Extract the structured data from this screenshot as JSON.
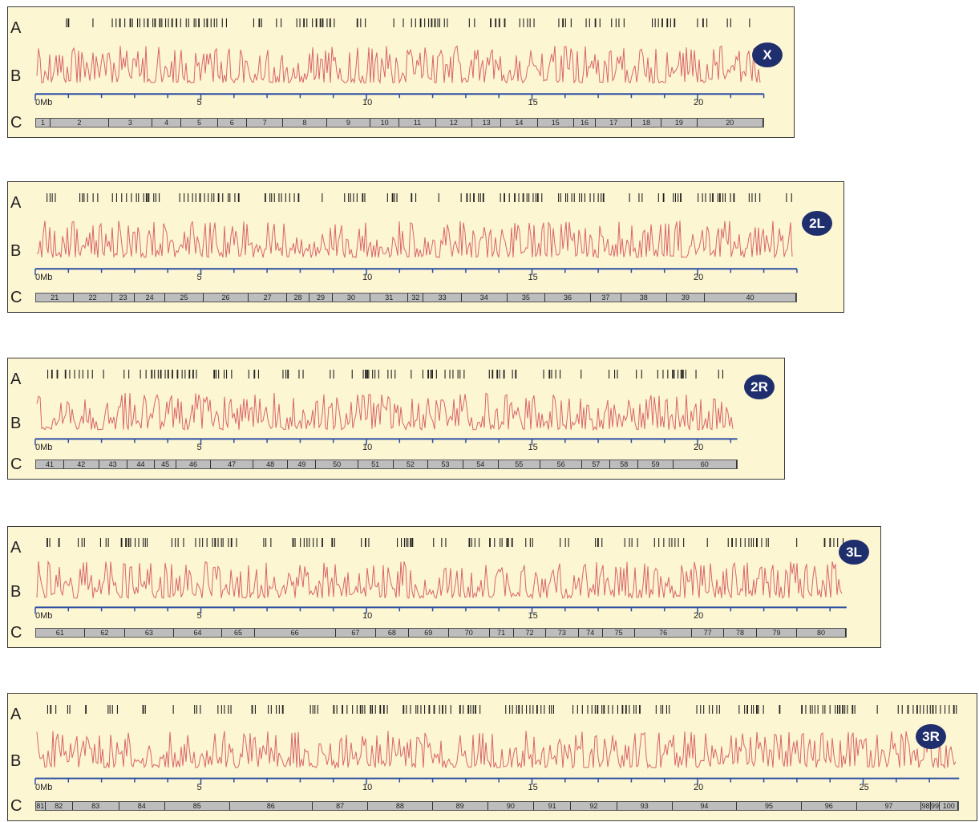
{
  "row_labels": {
    "a": "A",
    "b": "B",
    "c": "C"
  },
  "colors": {
    "panel_bg": "#fdf6d2",
    "trace": "#d9646a",
    "axis": "#2c4fa3",
    "badge_bg": "#1f2f6e",
    "segment_fill": "#bdbdbd"
  },
  "chromosomes": [
    {
      "id": "X",
      "badge": "X",
      "length_mb": 22,
      "tick_labels": [
        "0Mb",
        "5",
        "10",
        "15",
        "20"
      ],
      "segments": [
        "1",
        "2",
        "3",
        "4",
        "5",
        "6",
        "7",
        "8",
        "9",
        "10",
        "11",
        "12",
        "13",
        "14",
        "15",
        "16",
        "17",
        "18",
        "19",
        "20"
      ]
    },
    {
      "id": "2L",
      "badge": "2L",
      "length_mb": 23,
      "tick_labels": [
        "0Mb",
        "5",
        "10",
        "15",
        "20"
      ],
      "segments": [
        "21",
        "22",
        "23",
        "24",
        "25",
        "26",
        "27",
        "28",
        "29",
        "30",
        "31",
        "32",
        "33",
        "34",
        "35",
        "36",
        "37",
        "38",
        "39",
        "40"
      ]
    },
    {
      "id": "2R",
      "badge": "2R",
      "length_mb": 21.2,
      "tick_labels": [
        "0Mb",
        "5",
        "10",
        "15",
        "20"
      ],
      "segments": [
        "41",
        "42",
        "43",
        "44",
        "45",
        "46",
        "47",
        "48",
        "49",
        "50",
        "51",
        "52",
        "53",
        "54",
        "55",
        "56",
        "57",
        "58",
        "59",
        "60"
      ]
    },
    {
      "id": "3L",
      "badge": "3L",
      "length_mb": 24.5,
      "tick_labels": [
        "0Mb",
        "5",
        "10",
        "15",
        "20"
      ],
      "segments": [
        "61",
        "62",
        "63",
        "64",
        "65",
        "66",
        "67",
        "68",
        "69",
        "70",
        "71",
        "72",
        "73",
        "74",
        "75",
        "76",
        "77",
        "78",
        "79",
        "80"
      ]
    },
    {
      "id": "3R",
      "badge": "3R",
      "length_mb": 27.9,
      "tick_labels": [
        "0Mb",
        "5",
        "10",
        "15",
        "20",
        "25"
      ],
      "segments": [
        "81",
        "82",
        "83",
        "84",
        "85",
        "86",
        "87",
        "88",
        "89",
        "90",
        "91",
        "92",
        "93",
        "94",
        "95",
        "96",
        "97",
        "98",
        "99",
        "100"
      ]
    }
  ]
}
